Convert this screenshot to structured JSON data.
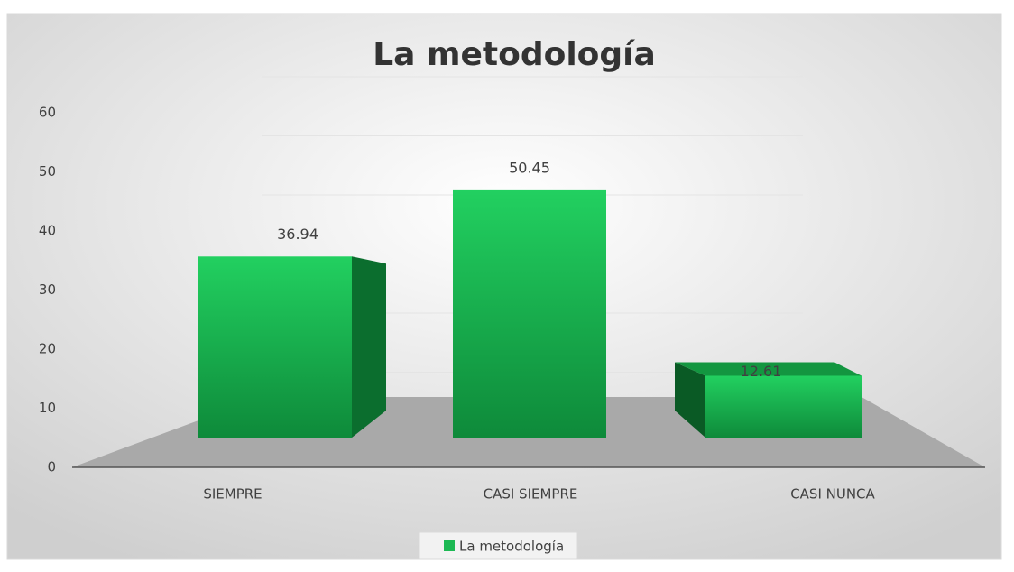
{
  "chart_data": {
    "type": "bar3d",
    "title": "La metodología",
    "categories": [
      "SIEMPRE",
      "CASI SIEMPRE",
      "CASI NUNCA"
    ],
    "series": [
      {
        "name": "La metodología",
        "color": "#1db954",
        "values": [
          36.94,
          50.45,
          12.61
        ]
      }
    ],
    "ylim": [
      0,
      60
    ],
    "yticks": [
      0,
      10,
      20,
      30,
      40,
      50,
      60
    ],
    "grid": true,
    "legend": "bottom"
  }
}
